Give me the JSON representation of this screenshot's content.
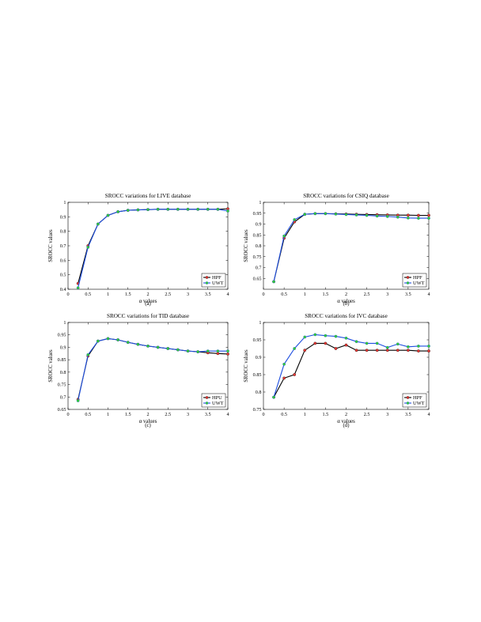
{
  "chart_data": [
    {
      "type": "line",
      "panel": "a",
      "caption": "(a)",
      "title": "SROCC variations for LIVE database",
      "xlabel": "α values",
      "ylabel": "SROCC values",
      "xlim": [
        0,
        4
      ],
      "ylim": [
        0.4,
        1
      ],
      "xticks": [
        0,
        0.5,
        1,
        1.5,
        2,
        2.5,
        3,
        3.5,
        4
      ],
      "xticklabels": [
        "0",
        "0.5",
        "1",
        "1.5",
        "2",
        "2.5",
        "3",
        "3.5",
        "4"
      ],
      "yticks": [
        0.4,
        0.5,
        0.6,
        0.7,
        0.8,
        0.9,
        1
      ],
      "yticklabels": [
        "0.4",
        "0.5",
        "0.6",
        "0.7",
        "0.8",
        "0.9",
        "1"
      ],
      "legend": "bottom-right",
      "grid": false,
      "x": [
        0.25,
        0.5,
        0.75,
        1,
        1.25,
        1.5,
        1.75,
        2,
        2.25,
        2.5,
        2.75,
        3,
        3.25,
        3.5,
        3.75,
        4
      ],
      "series": [
        {
          "name": "HPF",
          "color": "#000000",
          "marker": "#e53935",
          "values": [
            0.44,
            0.7,
            0.85,
            0.91,
            0.935,
            0.945,
            0.948,
            0.95,
            0.952,
            0.952,
            0.952,
            0.952,
            0.952,
            0.952,
            0.952,
            0.955
          ]
        },
        {
          "name": "UWT",
          "color": "#1f4fe0",
          "marker": "#33cc33",
          "values": [
            0.41,
            0.69,
            0.85,
            0.91,
            0.935,
            0.945,
            0.948,
            0.95,
            0.952,
            0.952,
            0.952,
            0.952,
            0.952,
            0.952,
            0.952,
            0.94
          ]
        }
      ]
    },
    {
      "type": "line",
      "panel": "b",
      "caption": "(b)",
      "title": "SROCC variations for CSIQ database",
      "xlabel": "α values",
      "ylabel": "SROCC values",
      "xlim": [
        0,
        4
      ],
      "ylim": [
        0.6,
        1
      ],
      "xticks": [
        0,
        0.5,
        1,
        1.5,
        2,
        2.5,
        3,
        3.5,
        4
      ],
      "xticklabels": [
        "0",
        "0.5",
        "1",
        "1.5",
        "2",
        "2.5",
        "3",
        "3.5",
        "4"
      ],
      "yticks": [
        0.65,
        0.7,
        0.75,
        0.8,
        0.85,
        0.9,
        0.95,
        1
      ],
      "yticklabels": [
        "0.65",
        "0.7",
        "0.75",
        "0.8",
        "0.85",
        "0.9",
        "0.95",
        "1"
      ],
      "legend": "bottom-right",
      "grid": false,
      "x": [
        0.25,
        0.5,
        0.75,
        1,
        1.25,
        1.5,
        1.75,
        2,
        2.25,
        2.5,
        2.75,
        3,
        3.25,
        3.5,
        3.75,
        4
      ],
      "series": [
        {
          "name": "HPF",
          "color": "#000000",
          "marker": "#e53935",
          "values": [
            0.635,
            0.835,
            0.91,
            0.945,
            0.948,
            0.948,
            0.947,
            0.946,
            0.945,
            0.944,
            0.943,
            0.942,
            0.941,
            0.941,
            0.94,
            0.94
          ]
        },
        {
          "name": "UWT",
          "color": "#1f4fe0",
          "marker": "#33cc33",
          "values": [
            0.635,
            0.845,
            0.92,
            0.945,
            0.948,
            0.948,
            0.946,
            0.944,
            0.942,
            0.94,
            0.937,
            0.935,
            0.932,
            0.928,
            0.927,
            0.927
          ]
        }
      ]
    },
    {
      "type": "line",
      "panel": "c",
      "caption": "(c)",
      "title": "SROCC variations for TID database",
      "xlabel": "α values",
      "ylabel": "SROCC values",
      "xlim": [
        0,
        4
      ],
      "ylim": [
        0.65,
        1
      ],
      "xticks": [
        0,
        0.5,
        1,
        1.5,
        2,
        2.5,
        3,
        3.5,
        4
      ],
      "xticklabels": [
        "0",
        "0.5",
        "1",
        "1.5",
        "2",
        "2.5",
        "3",
        "3.5",
        "4"
      ],
      "yticks": [
        0.65,
        0.7,
        0.75,
        0.8,
        0.85,
        0.9,
        0.95,
        1
      ],
      "yticklabels": [
        "0.65",
        "0.7",
        "0.75",
        "0.8",
        "0.85",
        "0.9",
        "0.95",
        "1"
      ],
      "legend": "bottom-right",
      "grid": false,
      "x": [
        0.25,
        0.5,
        0.75,
        1,
        1.25,
        1.5,
        1.75,
        2,
        2.25,
        2.5,
        2.75,
        3,
        3.25,
        3.5,
        3.75,
        4
      ],
      "series": [
        {
          "name": "HPU",
          "color": "#000000",
          "marker": "#e53935",
          "values": [
            0.69,
            0.865,
            0.925,
            0.935,
            0.93,
            0.92,
            0.912,
            0.905,
            0.9,
            0.895,
            0.89,
            0.885,
            0.882,
            0.878,
            0.875,
            0.873
          ]
        },
        {
          "name": "UWT",
          "color": "#1f4fe0",
          "marker": "#33cc33",
          "values": [
            0.685,
            0.87,
            0.925,
            0.935,
            0.93,
            0.92,
            0.912,
            0.905,
            0.9,
            0.895,
            0.89,
            0.885,
            0.882,
            0.885,
            0.885,
            0.885
          ]
        }
      ]
    },
    {
      "type": "line",
      "panel": "d",
      "caption": "(d)",
      "title": "SROCC variations for IVC database",
      "xlabel": "α values",
      "ylabel": "SROCC values",
      "xlim": [
        0,
        4
      ],
      "ylim": [
        0.75,
        1
      ],
      "xticks": [
        0,
        0.5,
        1,
        1.5,
        2,
        2.5,
        3,
        3.5,
        4
      ],
      "xticklabels": [
        "0",
        "0.5",
        "1",
        "1.5",
        "2",
        "2.5",
        "3",
        "3.5",
        "4"
      ],
      "yticks": [
        0.75,
        0.8,
        0.85,
        0.9,
        0.95,
        1
      ],
      "yticklabels": [
        "0.75",
        "0.8",
        "0.85",
        "0.9",
        "0.95",
        "1"
      ],
      "legend": "bottom-right",
      "grid": false,
      "x": [
        0.25,
        0.5,
        0.75,
        1,
        1.25,
        1.5,
        1.75,
        2,
        2.25,
        2.5,
        2.75,
        3,
        3.25,
        3.5,
        3.75,
        4
      ],
      "series": [
        {
          "name": "HPF",
          "color": "#000000",
          "marker": "#e53935",
          "values": [
            0.785,
            0.84,
            0.85,
            0.92,
            0.94,
            0.94,
            0.925,
            0.935,
            0.92,
            0.92,
            0.92,
            0.92,
            0.92,
            0.92,
            0.918,
            0.918
          ]
        },
        {
          "name": "UWT",
          "color": "#1f4fe0",
          "marker": "#33cc33",
          "values": [
            0.785,
            0.88,
            0.925,
            0.958,
            0.965,
            0.962,
            0.96,
            0.955,
            0.945,
            0.94,
            0.94,
            0.928,
            0.938,
            0.93,
            0.932,
            0.932
          ]
        }
      ]
    }
  ]
}
